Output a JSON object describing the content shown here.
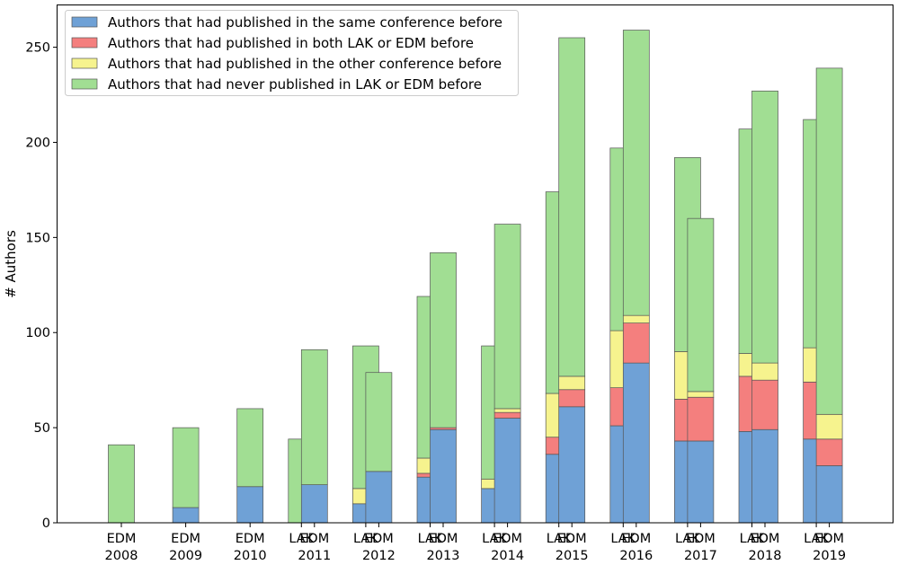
{
  "chart_data": {
    "type": "bar",
    "stacked": true,
    "ylabel": "# Authors",
    "xlabel": "",
    "ylim": [
      0,
      272
    ],
    "yticks": [
      0,
      50,
      100,
      150,
      200,
      250
    ],
    "grid": false,
    "legend_position": "top-left",
    "years": [
      "2008",
      "2009",
      "2010",
      "2011",
      "2012",
      "2013",
      "2014",
      "2015",
      "2016",
      "2017",
      "2018",
      "2019"
    ],
    "bars": [
      {
        "year": "2008",
        "conf": "EDM",
        "values": [
          0,
          0,
          0,
          41
        ]
      },
      {
        "year": "2009",
        "conf": "EDM",
        "values": [
          8,
          0,
          0,
          42
        ]
      },
      {
        "year": "2010",
        "conf": "EDM",
        "values": [
          19,
          0,
          0,
          41
        ]
      },
      {
        "year": "2011",
        "conf": "LAK",
        "values": [
          0,
          0,
          0,
          44
        ]
      },
      {
        "year": "2011",
        "conf": "EDM",
        "values": [
          20,
          0,
          0,
          71
        ]
      },
      {
        "year": "2012",
        "conf": "LAK",
        "values": [
          10,
          0,
          8,
          75
        ]
      },
      {
        "year": "2012",
        "conf": "EDM",
        "values": [
          27,
          0,
          0,
          52
        ]
      },
      {
        "year": "2013",
        "conf": "LAK",
        "values": [
          24,
          2,
          8,
          85
        ]
      },
      {
        "year": "2013",
        "conf": "EDM",
        "values": [
          49,
          1,
          0,
          92
        ]
      },
      {
        "year": "2014",
        "conf": "LAK",
        "values": [
          18,
          0,
          5,
          70
        ]
      },
      {
        "year": "2014",
        "conf": "EDM",
        "values": [
          55,
          3,
          2,
          97
        ]
      },
      {
        "year": "2015",
        "conf": "LAK",
        "values": [
          36,
          9,
          23,
          106
        ]
      },
      {
        "year": "2015",
        "conf": "EDM",
        "values": [
          61,
          9,
          7,
          178
        ]
      },
      {
        "year": "2016",
        "conf": "LAK",
        "values": [
          51,
          20,
          30,
          96
        ]
      },
      {
        "year": "2016",
        "conf": "EDM",
        "values": [
          84,
          21,
          4,
          150
        ]
      },
      {
        "year": "2017",
        "conf": "LAK",
        "values": [
          43,
          22,
          25,
          102
        ]
      },
      {
        "year": "2017",
        "conf": "EDM",
        "values": [
          43,
          23,
          3,
          91
        ]
      },
      {
        "year": "2018",
        "conf": "LAK",
        "values": [
          48,
          29,
          12,
          118
        ]
      },
      {
        "year": "2018",
        "conf": "EDM",
        "values": [
          49,
          26,
          9,
          143
        ]
      },
      {
        "year": "2019",
        "conf": "LAK",
        "values": [
          44,
          30,
          18,
          120
        ]
      },
      {
        "year": "2019",
        "conf": "EDM",
        "values": [
          30,
          14,
          13,
          182
        ]
      }
    ],
    "series": [
      {
        "name": "Authors that had published in the same conference before",
        "color": "#6fa1d6"
      },
      {
        "name": "Authors that had published in both LAK or EDM before",
        "color": "#f47f7e"
      },
      {
        "name": "Authors that had published in the other conference before",
        "color": "#f6f38e"
      },
      {
        "name": "Authors that had never published in LAK or EDM before",
        "color": "#a1de93"
      }
    ]
  }
}
